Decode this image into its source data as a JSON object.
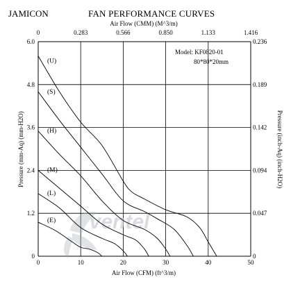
{
  "header": {
    "brand": "JAMICON",
    "title": "FAN PERFORMANCE CURVES"
  },
  "model": {
    "line1": "Model:  KF0820-01",
    "line2": "80*80*20mm"
  },
  "watermark": "ventel",
  "chart_data": {
    "type": "line",
    "title": "FAN PERFORMANCE CURVES",
    "xlabel": "Air Flow (CFM) (ft^3/m)",
    "ylabel": "Pressure (mm-Aq) (mm-H2O)",
    "x2label": "Air Flow (CMM) (M^3/m)",
    "y2label": "Pressure (inch-Aq) (inch-H2O)",
    "xlim": [
      0,
      50
    ],
    "ylim": [
      0,
      6
    ],
    "grid": true,
    "x_ticks": [
      "0",
      "10",
      "20",
      "30",
      "40",
      "50"
    ],
    "y_ticks": [
      "0",
      "1.2",
      "2.4",
      "3.6",
      "4.8",
      "6.0"
    ],
    "x2_ticks": [
      "0",
      "0.283",
      "0.566",
      "0.850",
      "1.133",
      "1.416"
    ],
    "y2_ticks": [
      "0",
      "0.047",
      "0.094",
      "0.142",
      "0.189",
      "0.236"
    ],
    "series": [
      {
        "name": "(U)",
        "x": [
          0,
          5,
          10,
          15,
          20,
          22,
          25,
          30,
          35,
          38,
          40,
          42
        ],
        "y": [
          5.6,
          4.6,
          3.75,
          3.1,
          2.1,
          1.8,
          1.6,
          1.3,
          1.1,
          0.8,
          0.4,
          0
        ]
      },
      {
        "name": "(S)",
        "x": [
          0,
          5,
          10,
          15,
          20,
          25,
          28,
          32,
          35,
          36.5
        ],
        "y": [
          4.6,
          3.8,
          3.05,
          2.3,
          1.55,
          1.25,
          1.05,
          0.75,
          0.3,
          0
        ]
      },
      {
        "name": "(H)",
        "x": [
          0,
          5,
          10,
          15,
          20,
          25,
          28,
          30,
          31
        ],
        "y": [
          3.5,
          2.85,
          2.25,
          1.55,
          1.0,
          0.75,
          0.5,
          0.2,
          0
        ]
      },
      {
        "name": "(M)",
        "x": [
          0,
          5,
          10,
          15,
          20,
          23,
          25,
          26
        ],
        "y": [
          2.4,
          1.9,
          1.4,
          0.9,
          0.6,
          0.45,
          0.2,
          0
        ]
      },
      {
        "name": "(L)",
        "x": [
          0,
          5,
          10,
          15,
          18,
          20,
          21
        ],
        "y": [
          1.75,
          1.35,
          0.8,
          0.5,
          0.35,
          0.15,
          0
        ]
      },
      {
        "name": "(E)",
        "x": [
          0,
          4,
          8,
          10,
          12,
          14,
          15
        ],
        "y": [
          0.95,
          0.72,
          0.4,
          0.25,
          0.2,
          0.1,
          0
        ]
      }
    ]
  }
}
